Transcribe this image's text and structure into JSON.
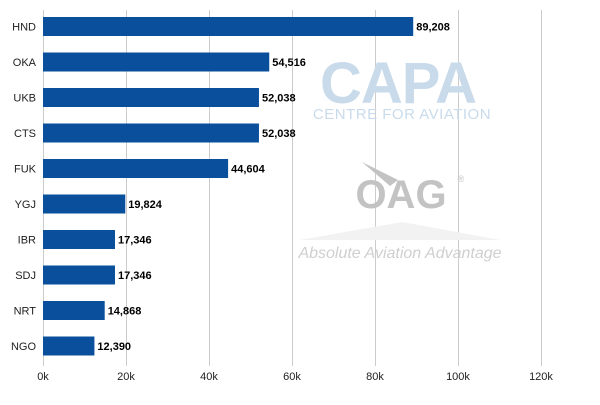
{
  "chart_data": {
    "type": "bar",
    "orientation": "horizontal",
    "categories": [
      "HND",
      "OKA",
      "UKB",
      "CTS",
      "FUK",
      "YGJ",
      "IBR",
      "SDJ",
      "NRT",
      "NGO"
    ],
    "values": [
      89208,
      54516,
      52038,
      52038,
      44604,
      19824,
      17346,
      17346,
      14868,
      12390
    ],
    "value_labels": [
      "89,208",
      "54,516",
      "52,038",
      "52,038",
      "44,604",
      "19,824",
      "17,346",
      "17,346",
      "14,868",
      "12,390"
    ],
    "xlim": [
      0,
      120000
    ],
    "x_ticks": [
      0,
      20000,
      40000,
      60000,
      80000,
      100000,
      120000
    ],
    "x_tick_labels": [
      "0k",
      "20k",
      "40k",
      "60k",
      "80k",
      "100k",
      "120k"
    ],
    "grid": true,
    "bar_color": "#0a4f9c",
    "grid_color": "#cccccc"
  },
  "watermarks": {
    "capa_logo": "CAPA",
    "capa_subtitle": "CENTRE FOR AVIATION",
    "oag_logo": "OAG",
    "oag_tagline": "Absolute Aviation Advantage"
  }
}
